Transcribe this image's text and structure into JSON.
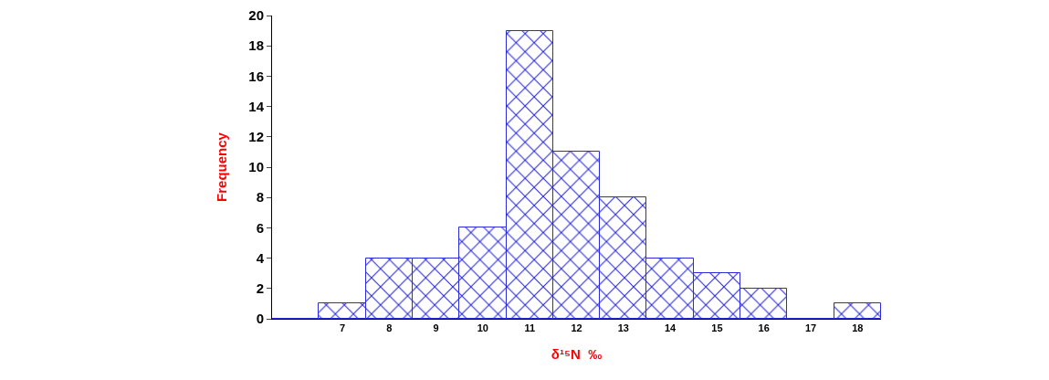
{
  "chart_data": {
    "type": "bar",
    "xlabel": "δ¹⁵N  ‰",
    "ylabel": "Frequency",
    "categories": [
      null,
      "7",
      "8",
      "9",
      "10",
      "11",
      "12",
      "13",
      "14",
      "15",
      "16",
      "17",
      "18"
    ],
    "values": [
      0,
      1,
      4,
      4,
      6,
      19,
      11,
      8,
      4,
      3,
      2,
      0,
      1
    ],
    "color": "#2b2bd9",
    "ylim": [
      0,
      20
    ],
    "yticks": [
      0,
      2,
      4,
      6,
      8,
      10,
      12,
      14,
      16,
      18,
      20
    ],
    "grid": false
  }
}
